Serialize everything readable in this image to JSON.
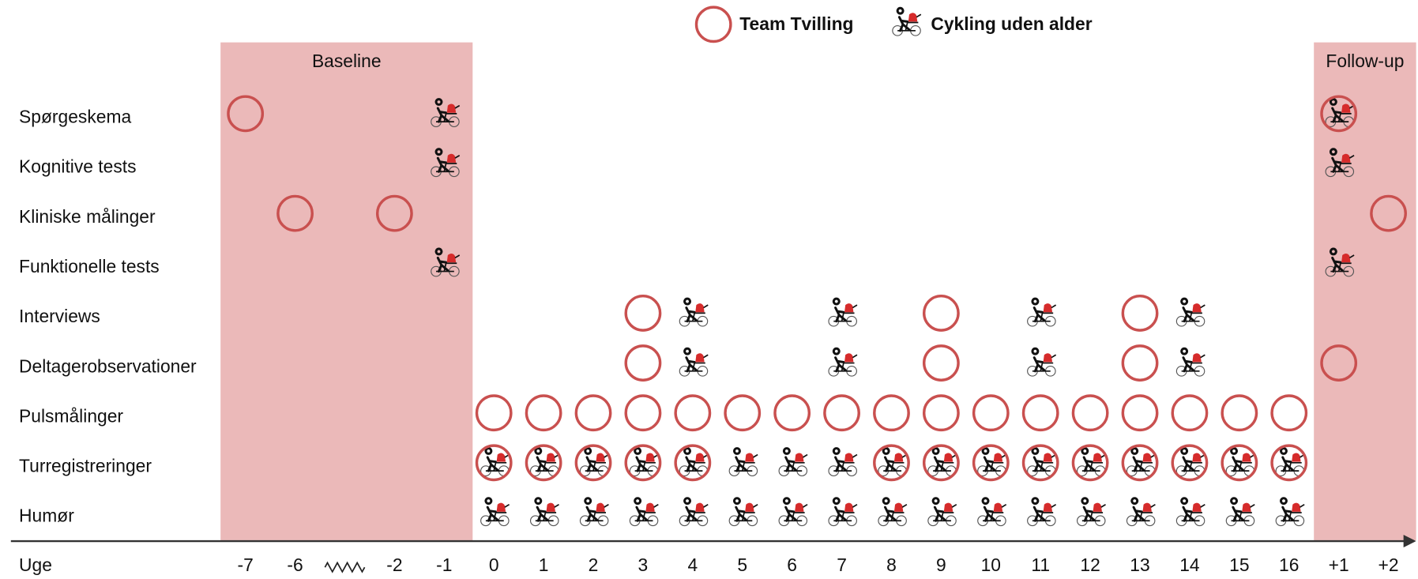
{
  "legend": {
    "team_tvilling": "Team Tvilling",
    "cykling_uden_alder": "Cykling uden alder"
  },
  "axis_label": "Uge",
  "columns": [
    "-7",
    "-6",
    null,
    "-2",
    "-1",
    "0",
    "1",
    "2",
    "3",
    "4",
    "5",
    "6",
    "7",
    "8",
    "9",
    "10",
    "11",
    "12",
    "13",
    "14",
    "15",
    "16",
    "+1",
    "+2"
  ],
  "phases": [
    {
      "label": "Baseline",
      "columns": [
        "-7",
        "-1"
      ]
    },
    {
      "label": "Follow-up",
      "columns": [
        "+1",
        "+2"
      ]
    }
  ],
  "rows": [
    {
      "label": "Spørgeskema",
      "team_tvilling": [
        "-7",
        "+1"
      ],
      "cykling_uden_alder": [
        "-1",
        "+1"
      ]
    },
    {
      "label": "Kognitive tests",
      "team_tvilling": [],
      "cykling_uden_alder": [
        "-1",
        "+1"
      ]
    },
    {
      "label": "Kliniske målinger",
      "team_tvilling": [
        "-6",
        "-2",
        "+2"
      ],
      "cykling_uden_alder": []
    },
    {
      "label": "Funktionelle tests",
      "team_tvilling": [],
      "cykling_uden_alder": [
        "-1",
        "+1"
      ]
    },
    {
      "label": "Interviews",
      "team_tvilling": [
        "3",
        "9",
        "13"
      ],
      "cykling_uden_alder": [
        "4",
        "7",
        "11",
        "14"
      ]
    },
    {
      "label": "Deltagerobservationer",
      "team_tvilling": [
        "3",
        "9",
        "13",
        "+1"
      ],
      "cykling_uden_alder": [
        "4",
        "7",
        "11",
        "14"
      ]
    },
    {
      "label": "Pulsmålinger",
      "team_tvilling": [
        "0",
        "1",
        "2",
        "3",
        "4",
        "5",
        "6",
        "7",
        "8",
        "9",
        "10",
        "11",
        "12",
        "13",
        "14",
        "15",
        "16"
      ],
      "cykling_uden_alder": []
    },
    {
      "label": "Turregistreringer",
      "team_tvilling": [
        "0",
        "1",
        "2",
        "3",
        "4",
        "8",
        "9",
        "10",
        "11",
        "12",
        "13",
        "14",
        "15",
        "16"
      ],
      "cykling_uden_alder": [
        "0",
        "1",
        "2",
        "3",
        "4",
        "5",
        "6",
        "7",
        "8",
        "9",
        "10",
        "11",
        "12",
        "13",
        "14",
        "15",
        "16"
      ]
    },
    {
      "label": "Humør",
      "team_tvilling": [],
      "cykling_uden_alder": [
        "0",
        "1",
        "2",
        "3",
        "4",
        "5",
        "6",
        "7",
        "8",
        "9",
        "10",
        "11",
        "12",
        "13",
        "14",
        "15",
        "16"
      ]
    }
  ]
}
